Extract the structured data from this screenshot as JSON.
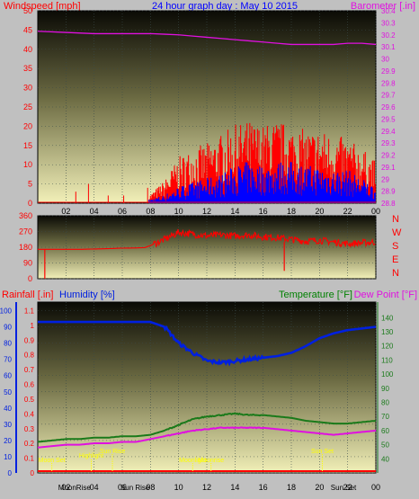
{
  "header": {
    "left": "Windspeed [mph]",
    "center": "24 hour graph day : May 10 2015",
    "right": "Barometer [.in]"
  },
  "colors": {
    "wind": "#ff0000",
    "gust": "#0000ff",
    "baro": "#e010e0",
    "dir": "#ff0000",
    "rain": "#ff0000",
    "humidity": "#0020e0",
    "temp": "#1a7a1a",
    "dew": "#e010e0",
    "labels_left": "#ff0000",
    "labels_right": "#008000",
    "sun": "#ffff00"
  },
  "chart_data": [
    {
      "type": "line",
      "title": "24 hour graph day : May 10 2015",
      "ylabel": "Windspeed [mph]",
      "y2label": "Barometer [.in]",
      "ylim": [
        0,
        50
      ],
      "y2lim": [
        28.8,
        30.4
      ],
      "yticks": [
        "0",
        "5",
        "10",
        "15",
        "20",
        "25",
        "30",
        "35",
        "40",
        "45",
        "50"
      ],
      "y2ticks": [
        "28.8",
        "28.9",
        "29",
        "29.1",
        "29.2",
        "29.3",
        "29.4",
        "29.5",
        "29.6",
        "29.7",
        "29.8",
        "29.9",
        "30",
        "30.1",
        "30.2",
        "30.3",
        "30.4"
      ],
      "xticks": [
        "02",
        "04",
        "06",
        "08",
        "10",
        "12",
        "14",
        "16",
        "18",
        "20",
        "22",
        "00"
      ],
      "x_hours": [
        2,
        4,
        6,
        8,
        10,
        12,
        14,
        16,
        18,
        20,
        22,
        24
      ],
      "grid": true,
      "series": [
        {
          "key": "baro",
          "x": [
            0,
            2,
            4,
            6,
            8,
            9,
            10,
            11,
            12,
            13,
            14,
            15,
            16,
            17,
            18,
            19,
            20,
            21,
            22,
            23,
            24
          ],
          "values": [
            30.23,
            30.22,
            30.21,
            30.21,
            30.21,
            30.205,
            30.2,
            30.19,
            30.18,
            30.17,
            30.16,
            30.15,
            30.14,
            30.13,
            30.12,
            30.12,
            30.12,
            30.12,
            30.13,
            30.13,
            30.12
          ]
        },
        {
          "key": "wind",
          "x": [
            0,
            1,
            2,
            3,
            4,
            5,
            6,
            7,
            8,
            9,
            10,
            11,
            12,
            13,
            14,
            15,
            16,
            17,
            18,
            19,
            20,
            21,
            22,
            23,
            24
          ],
          "values": [
            0,
            0,
            0,
            0,
            0,
            0,
            0,
            0,
            1,
            2,
            4,
            5,
            6,
            7,
            9,
            10,
            9,
            10,
            10,
            9,
            9,
            8,
            8,
            6,
            4
          ]
        },
        {
          "key": "gust",
          "x": [
            0,
            1,
            2,
            3,
            4,
            5,
            6,
            7,
            8,
            9,
            10,
            11,
            12,
            13,
            14,
            15,
            16,
            17,
            18,
            19,
            20,
            21,
            22,
            23,
            24
          ],
          "values": [
            0,
            0,
            0,
            0,
            0,
            0,
            0,
            0,
            2,
            5,
            10,
            12,
            13,
            15,
            17,
            18,
            17,
            18,
            17,
            16,
            16,
            15,
            14,
            12,
            9
          ]
        },
        {
          "key": "wind_spikes",
          "x": [
            2.7,
            3.6,
            5.0,
            6.1,
            7.8
          ],
          "values": [
            3,
            5,
            2,
            2,
            4
          ]
        }
      ]
    },
    {
      "type": "line",
      "title": "",
      "ylim": [
        0,
        360
      ],
      "yticks": [
        "0",
        "90",
        "180",
        "270",
        "360"
      ],
      "compass": [
        "N",
        "W",
        "S",
        "E",
        "N"
      ],
      "xticks": [],
      "series": [
        {
          "key": "dir",
          "x": [
            0,
            1,
            2,
            3,
            4,
            5,
            6,
            7,
            7.6,
            8,
            9,
            10,
            11,
            12,
            13,
            14,
            15,
            16,
            17,
            18,
            19,
            20,
            21,
            22,
            23,
            24
          ],
          "values": [
            168,
            168,
            168,
            168,
            170,
            172,
            175,
            176,
            178,
            190,
            225,
            265,
            255,
            245,
            250,
            245,
            250,
            240,
            235,
            225,
            215,
            220,
            210,
            200,
            205,
            210
          ]
        }
      ]
    },
    {
      "type": "line",
      "ylabel": "Rainfall [.in]",
      "ylabel2": "Humidity [%]",
      "y3label": "Temperature [°F]",
      "y4label": "Dew Point [°F]",
      "ylim_rain": [
        0,
        1.1
      ],
      "ylim_hum": [
        0,
        100
      ],
      "ylim_temp": [
        30,
        145
      ],
      "rain_ticks": [
        "0",
        "0.1",
        "0.2",
        "0.3",
        "0.4",
        "0.5",
        "0.6",
        "0.7",
        "0.8",
        "0.9",
        "1",
        "1.1"
      ],
      "hum_ticks": [
        "0",
        "10",
        "20",
        "30",
        "40",
        "50",
        "60",
        "70",
        "80",
        "90",
        "100"
      ],
      "temp_ticks": [
        "40",
        "50",
        "60",
        "70",
        "80",
        "90",
        "100",
        "110",
        "120",
        "130",
        "140"
      ],
      "xticks": [
        "02",
        "04",
        "06",
        "08",
        "10",
        "12",
        "14",
        "16",
        "18",
        "20",
        "22",
        "00"
      ],
      "series": [
        {
          "key": "humidity",
          "x": [
            0,
            2,
            4,
            6,
            8,
            9,
            10,
            11,
            12,
            13,
            14,
            15,
            16,
            17,
            18,
            19,
            20,
            21,
            22,
            23,
            24
          ],
          "values": [
            93,
            93,
            93,
            93,
            93,
            90,
            80,
            74,
            69,
            68,
            69,
            70,
            71,
            72,
            74,
            78,
            83,
            86,
            88,
            89,
            90
          ]
        },
        {
          "key": "temp",
          "x": [
            0,
            1,
            2,
            3,
            4,
            5,
            6,
            7,
            8,
            9,
            10,
            11,
            12,
            13,
            14,
            15,
            16,
            17,
            18,
            19,
            20,
            21,
            22,
            23,
            24
          ],
          "values": [
            52,
            53,
            54,
            54,
            55,
            55,
            56,
            56,
            57,
            60,
            64,
            68,
            70,
            71,
            72,
            71,
            71,
            70,
            69,
            67,
            66,
            65,
            65,
            66,
            67
          ]
        },
        {
          "key": "dew",
          "x": [
            0,
            1,
            2,
            3,
            4,
            5,
            6,
            7,
            8,
            9,
            10,
            11,
            12,
            13,
            14,
            15,
            16,
            17,
            18,
            19,
            20,
            21,
            22,
            23,
            24
          ],
          "values": [
            48,
            49,
            50,
            50,
            51,
            51,
            52,
            52,
            54,
            56,
            58,
            60,
            61,
            62,
            62,
            62,
            62,
            61,
            60,
            59,
            58,
            57,
            58,
            59,
            60
          ]
        }
      ],
      "events": [
        {
          "label": "Moon Set",
          "hour": 1.0,
          "row": 1
        },
        {
          "label": "Sun Rise",
          "hour": 5.3,
          "row": 3
        },
        {
          "label": "Highlight",
          "hour": 3.8,
          "row": 2
        },
        {
          "label": "Moonlight",
          "hour": 11.0,
          "row": 1
        },
        {
          "label": "Moonrise",
          "hour": 12.3,
          "row": 1
        },
        {
          "label": "Sun Set",
          "hour": 20.2,
          "row": 3
        }
      ],
      "bottom_labels": [
        {
          "label": "MoonRise",
          "hour": 1.2
        },
        {
          "label": "Sun Rise",
          "hour": 5.5
        },
        {
          "label": "Sun Set",
          "hour": 20.3
        }
      ]
    }
  ],
  "panel2_labels": {
    "left": "Rainfall [.in]",
    "mid": "Humidity [%]",
    "right": "Temperature [°F]",
    "right2": "Dew Point [°F]"
  }
}
